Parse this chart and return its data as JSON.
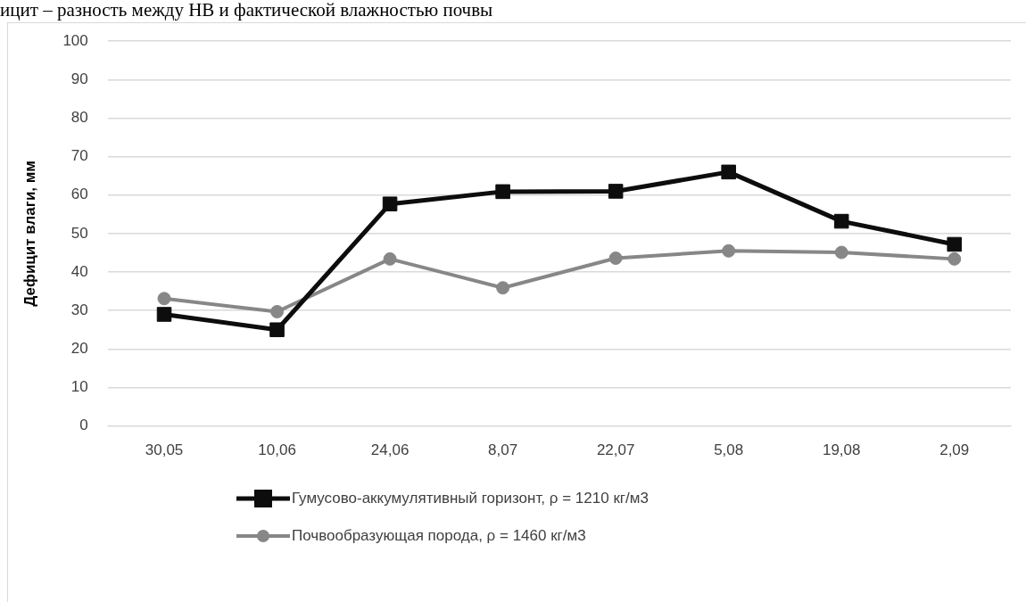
{
  "chart_data": {
    "type": "line",
    "annotations": [
      "ицит – разность между НВ и фактической влажностью почвы"
    ],
    "ylabel": "Дефицит влаги, мм",
    "categories": [
      "30,05",
      "10,06",
      "24,06",
      "8,07",
      "22,07",
      "5,08",
      "19,08",
      "2,09"
    ],
    "series": [
      {
        "name": "Гумусово-аккумулятивный горизонт, ρ = 1210 кг/м3",
        "color": "#0d0d0d",
        "marker": "square",
        "values": [
          29,
          25,
          57.7,
          60.9,
          61,
          66,
          53.2,
          47.2
        ]
      },
      {
        "name": "Почвообразующая порода, ρ = 1460 кг/м3",
        "color": "#878787",
        "marker": "circle",
        "values": [
          33.1,
          29.7,
          43.4,
          35.9,
          43.6,
          45.5,
          45.1,
          43.4
        ]
      }
    ],
    "ylim": [
      0,
      100
    ],
    "yticks": [
      0,
      10,
      20,
      30,
      40,
      50,
      60,
      70,
      80,
      90,
      100
    ],
    "grid": "y",
    "legend": "bottom",
    "line_style": "solid"
  }
}
